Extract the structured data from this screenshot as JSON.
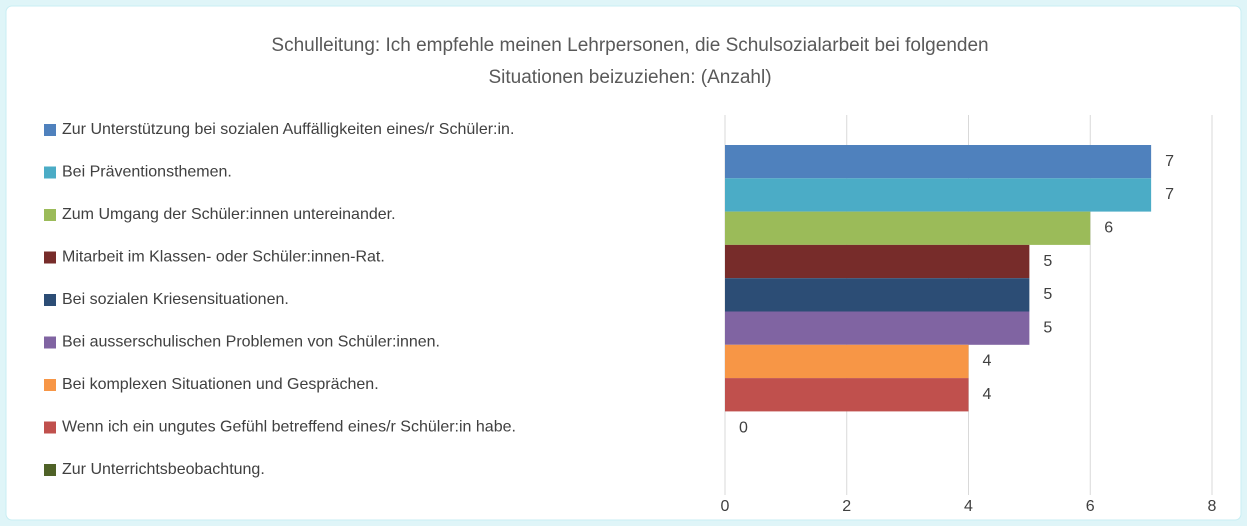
{
  "chart_data": {
    "type": "bar",
    "orientation": "horizontal",
    "title": [
      "Schulleitung: Ich empfehle meinen Lehrpersonen, die Schulsozialarbeit bei folgenden",
      "Situationen beizuziehen: (Anzahl)"
    ],
    "series": [
      {
        "name": "Zur Unterstützung bei sozialen Auffälligkeiten eines/r Schüler:in.",
        "color": "#4f81bd",
        "values": [
          7
        ]
      },
      {
        "name": "Bei Präventionsthemen.",
        "color": "#4bacc6",
        "values": [
          7
        ]
      },
      {
        "name": "Zum Umgang der Schüler:innen untereinander.",
        "color": "#9bbb59",
        "values": [
          6
        ]
      },
      {
        "name": "Mitarbeit im Klassen- oder Schüler:innen-Rat.",
        "color": "#772c2a",
        "values": [
          5
        ]
      },
      {
        "name": "Bei sozialen Kriesensituationen.",
        "color": "#2c4d75",
        "values": [
          5
        ]
      },
      {
        "name": "Bei ausserschulischen Problemen von Schüler:innen.",
        "color": "#8064a2",
        "values": [
          5
        ]
      },
      {
        "name": "Bei komplexen Situationen und Gesprächen.",
        "color": "#f79646",
        "values": [
          4
        ]
      },
      {
        "name": "Wenn ich ein ungutes Gefühl betreffend eines/r Schüler:in habe.",
        "color": "#c0504d",
        "values": [
          4
        ]
      },
      {
        "name": "Zur Unterrichtsbeobachtung.",
        "color": "#4f6228",
        "values": [
          0
        ]
      }
    ],
    "xlim": [
      0,
      8
    ],
    "xticks": [
      0,
      2,
      4,
      6,
      8
    ],
    "grid": true,
    "legend": "left"
  }
}
